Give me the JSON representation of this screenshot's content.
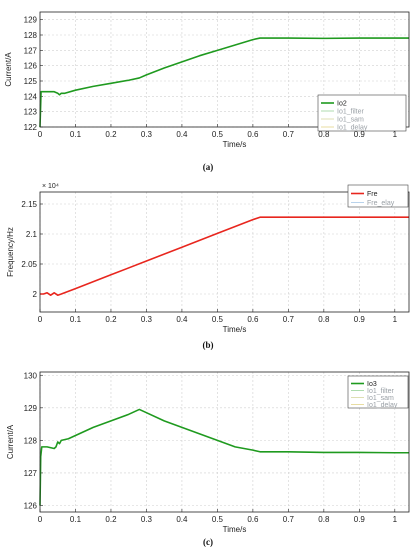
{
  "chart_data": [
    {
      "type": "line",
      "caption": "(a)",
      "xlabel": "Time/s",
      "ylabel": "Current/A",
      "xlim": [
        0,
        1.04
      ],
      "ylim": [
        122,
        129.5
      ],
      "xticks": [
        0,
        0.1,
        0.2,
        0.3,
        0.4,
        0.5,
        0.6,
        0.7,
        0.8,
        0.9,
        1
      ],
      "yticks": [
        122,
        123,
        124,
        125,
        126,
        127,
        128,
        129
      ],
      "grid": true,
      "legend_position": "bottom-right",
      "series": [
        {
          "name": "Io2",
          "color": "#1f9a1f",
          "width": 1.6,
          "x": [
            0,
            0.003,
            0.01,
            0.02,
            0.04,
            0.05,
            0.055,
            0.06,
            0.07,
            0.1,
            0.15,
            0.2,
            0.25,
            0.28,
            0.3,
            0.35,
            0.4,
            0.45,
            0.5,
            0.55,
            0.6,
            0.62,
            0.7,
            0.8,
            0.9,
            1.0,
            1.04
          ],
          "y": [
            122,
            124.3,
            124.3,
            124.3,
            124.3,
            124.2,
            124.1,
            124.2,
            124.2,
            124.4,
            124.65,
            124.85,
            125.05,
            125.2,
            125.4,
            125.85,
            126.25,
            126.65,
            127.0,
            127.35,
            127.7,
            127.8,
            127.8,
            127.78,
            127.8,
            127.8,
            127.8
          ]
        },
        {
          "name": "Io1_filter",
          "color": "#9bd39b",
          "width": 0.6,
          "legend_only": true
        },
        {
          "name": "Io1_sam",
          "color": "#d7d7a0",
          "width": 0.6,
          "legend_only": true
        },
        {
          "name": "Io1_delay",
          "color": "#e3d58a",
          "width": 0.6,
          "legend_only": true
        }
      ]
    },
    {
      "type": "line",
      "caption": "(b)",
      "xlabel": "Time/s",
      "ylabel": "Frequency/Hz",
      "multiplier": "× 10⁴",
      "xlim": [
        0,
        1.04
      ],
      "ylim": [
        1.97,
        2.17
      ],
      "xticks": [
        0,
        0.1,
        0.2,
        0.3,
        0.4,
        0.5,
        0.6,
        0.7,
        0.8,
        0.9,
        1
      ],
      "yticks": [
        2,
        2.05,
        2.1,
        2.15
      ],
      "ytick_labels": [
        "2",
        "2.05",
        "2.1",
        "2.15"
      ],
      "grid": true,
      "legend_position": "top-right",
      "series": [
        {
          "name": "Fre",
          "color": "#e8261e",
          "width": 1.6,
          "x": [
            0,
            0.01,
            0.02,
            0.03,
            0.04,
            0.05,
            0.06,
            0.1,
            0.2,
            0.3,
            0.4,
            0.5,
            0.6,
            0.62,
            0.7,
            0.8,
            0.9,
            1.0,
            1.04
          ],
          "y": [
            2.0,
            2.0,
            2.002,
            1.998,
            2.002,
            1.998,
            2.0,
            2.009,
            2.032,
            2.055,
            2.078,
            2.101,
            2.124,
            2.128,
            2.128,
            2.128,
            2.128,
            2.128,
            2.128
          ]
        },
        {
          "name": "Fre_elay",
          "color": "#a8c8e8",
          "width": 0.6,
          "legend_only": true
        }
      ]
    },
    {
      "type": "line",
      "caption": "(c)",
      "xlabel": "Time/s",
      "ylabel": "Current/A",
      "xlim": [
        0,
        1.04
      ],
      "ylim": [
        125.8,
        130.1
      ],
      "xticks": [
        0,
        0.1,
        0.2,
        0.3,
        0.4,
        0.5,
        0.6,
        0.7,
        0.8,
        0.9,
        1
      ],
      "yticks": [
        126,
        127,
        128,
        129,
        130
      ],
      "grid": true,
      "legend_position": "top-right",
      "series": [
        {
          "name": "Io3",
          "color": "#1f9a1f",
          "width": 1.6,
          "x": [
            0,
            0.002,
            0.005,
            0.02,
            0.04,
            0.045,
            0.05,
            0.055,
            0.06,
            0.08,
            0.1,
            0.15,
            0.2,
            0.25,
            0.28,
            0.3,
            0.35,
            0.4,
            0.45,
            0.5,
            0.55,
            0.6,
            0.62,
            0.7,
            0.8,
            0.9,
            1.0,
            1.04
          ],
          "y": [
            126,
            127.5,
            127.8,
            127.8,
            127.75,
            127.8,
            127.95,
            127.9,
            128.0,
            128.05,
            128.15,
            128.4,
            128.6,
            128.8,
            128.95,
            128.85,
            128.6,
            128.4,
            128.2,
            128.0,
            127.8,
            127.7,
            127.65,
            127.65,
            127.63,
            127.63,
            127.62,
            127.62
          ]
        },
        {
          "name": "Io1_filter",
          "color": "#9bd39b",
          "width": 0.6,
          "legend_only": true
        },
        {
          "name": "Io1_sam",
          "color": "#d7d7a0",
          "width": 0.6,
          "legend_only": true
        },
        {
          "name": "Io1_delay",
          "color": "#e3d58a",
          "width": 0.6,
          "legend_only": true
        }
      ]
    }
  ]
}
